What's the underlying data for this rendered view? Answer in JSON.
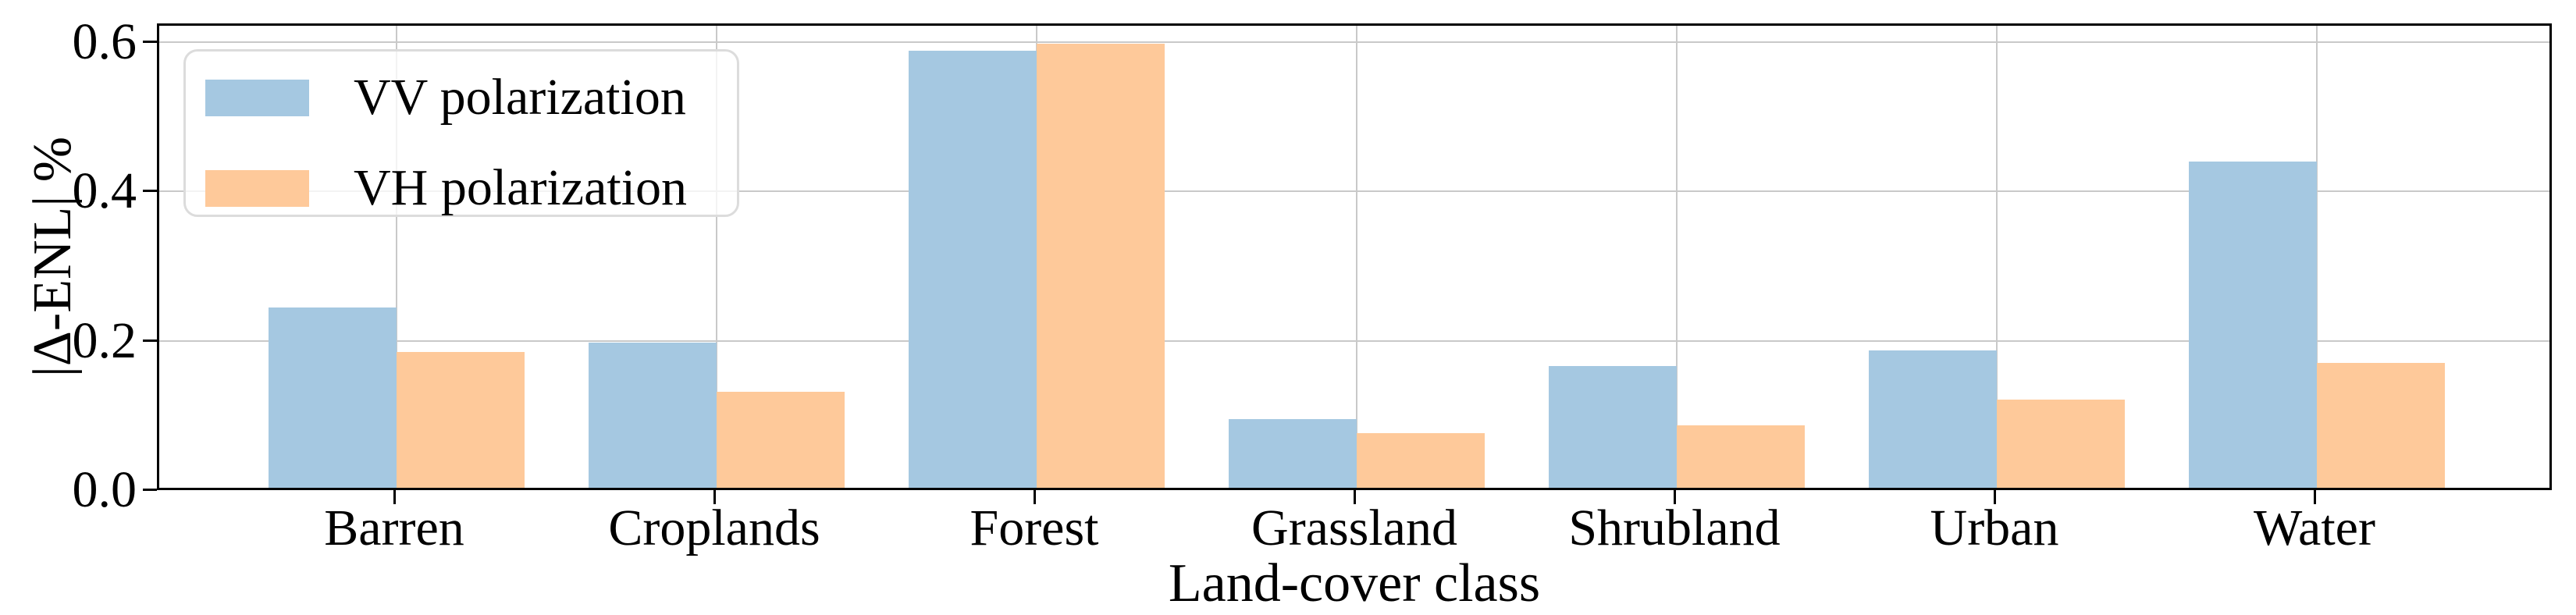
{
  "chart_data": {
    "type": "bar",
    "title": "",
    "categories": [
      "Barren",
      "Croplands",
      "Forest",
      "Grassland",
      "Shrubland",
      "Urban",
      "Water"
    ],
    "series": [
      {
        "name": "VV polarization",
        "color": "#a5c8e1",
        "values": [
          0.241,
          0.194,
          0.585,
          0.092,
          0.163,
          0.184,
          0.437
        ]
      },
      {
        "name": "VH polarization",
        "color": "#fec99a",
        "values": [
          0.182,
          0.129,
          0.595,
          0.073,
          0.084,
          0.118,
          0.167
        ]
      }
    ],
    "xlabel": "Land-cover class",
    "ylabel": "|Δ-ENL| %",
    "yticks": [
      0.0,
      0.2,
      0.4,
      0.6
    ],
    "ytick_labels": [
      "0.0",
      "0.2",
      "0.4",
      "0.6"
    ],
    "ylim": [
      0,
      0.625
    ],
    "bar_width_fraction": 0.4,
    "grid": true,
    "legend_position": "upper left",
    "colors": {
      "grid": "#c9c9c9",
      "spine": "#000000",
      "legend_border": "#dcdcdc",
      "background": "#ffffff"
    }
  }
}
